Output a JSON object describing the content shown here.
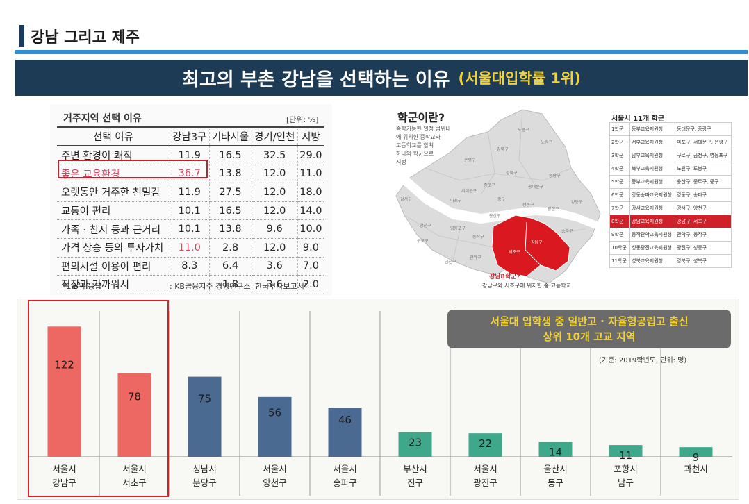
{
  "header": {
    "title": "강남 그리고 제주",
    "banner_main": "최고의 부촌 강남을 선택하는 이유",
    "banner_highlight": "(서울대입학률 1위)"
  },
  "reason_table": {
    "title": "거주지역 선택 이유",
    "unit": "[단위: %]",
    "headers": [
      "선택 이유",
      "강남3구",
      "기타서울",
      "경기/인천",
      "지방"
    ],
    "rows": [
      [
        "주변 환경이 쾌적",
        "11.9",
        "16.5",
        "32.5",
        "29.0"
      ],
      [
        "좋은 교육환경",
        "36.7",
        "13.8",
        "12.0",
        "11.0"
      ],
      [
        "오랫동안 거주한 친밀감",
        "11.9",
        "27.5",
        "12.0",
        "18.0"
      ],
      [
        "교통이 편리",
        "10.1",
        "16.5",
        "12.0",
        "14.0"
      ],
      [
        "가족 · 친지 등과 근거리",
        "10.1",
        "13.8",
        "9.6",
        "10.0"
      ],
      [
        "가격 상승 등의 투자가치",
        "11.0",
        "2.8",
        "12.0",
        "9.0"
      ],
      [
        "편의시설 이용이 편리",
        "8.3",
        "6.4",
        "3.6",
        "7.0"
      ],
      [
        "직장과 가까워서",
        "–",
        "1.8",
        "3.6",
        "2.0"
      ]
    ],
    "footnote": "*1순위 응답",
    "source": ": KB금융지주 경영연구소 '한국부자보고서'"
  },
  "map": {
    "title": "학군이란?",
    "desc": [
      "중학가능한 일정 범위내",
      "에 위치한 중학교와",
      "고등학교를 합쳐",
      "하나의 학군으로",
      "지정"
    ],
    "callout_title": "강남8학군?",
    "callout_text": "강남구와 서초구에 위치한 중·고등학교",
    "districts": [
      "도봉구",
      "노원구",
      "강북구",
      "은평구",
      "성북구",
      "종로구",
      "중랑구",
      "서대문구",
      "동대문구",
      "강서구",
      "마포구",
      "중구",
      "성동구",
      "광진구",
      "양천구",
      "용산구",
      "강동구",
      "구로구",
      "영등포구",
      "동작구",
      "송파구",
      "금천구",
      "관악구",
      "서초구",
      "강남구"
    ],
    "highlight_colors": {
      "gangnam": "#d9181f",
      "river": "#ffffff",
      "land": "#d9d9d9"
    }
  },
  "school_districts": {
    "title": "서울시 11개 학군",
    "rows": [
      [
        "1학군",
        "동부교육지원청",
        "동대문구, 중랑구"
      ],
      [
        "2학군",
        "서부교육지원청",
        "마포구, 서대문구, 은평구"
      ],
      [
        "3학군",
        "남부교육지원청",
        "구로구, 금천구, 영등포구"
      ],
      [
        "4학군",
        "북부교육지원청",
        "노원구, 도봉구"
      ],
      [
        "5학군",
        "중부교육지원청",
        "용산구, 종로구, 중구"
      ],
      [
        "6학군",
        "강동송파교육지원청",
        "강동구, 송파구"
      ],
      [
        "7학군",
        "강서교육지원청",
        "강서구, 양천구"
      ],
      [
        "8학군",
        "강남교육지원청",
        "강남구, 서초구"
      ],
      [
        "9학군",
        "동작관악교육지원청",
        "관악구, 동작구"
      ],
      [
        "10학군",
        "성동광진교육지원청",
        "광진구, 성동구"
      ],
      [
        "11학군",
        "성북교육지원청",
        "강북구, 성북구"
      ]
    ],
    "selected_index": 7
  },
  "chart_data": {
    "type": "bar",
    "title": "서울대 입학생 중 일반고 · 자율형공립고 출신 상위 10개 고교 지역",
    "title_line1": "서울대 입학생 중 일반고 · 자율형공립고 출신",
    "title_line2": "상위 10개 고교 지역",
    "note": "(기준: 2019학년도, 단위: 명)",
    "categories": [
      [
        "서울시",
        "강남구"
      ],
      [
        "서울시",
        "서초구"
      ],
      [
        "성남시",
        "분당구"
      ],
      [
        "서울시",
        "양천구"
      ],
      [
        "서울시",
        "송파구"
      ],
      [
        "부산시",
        "진구"
      ],
      [
        "서울시",
        "광진구"
      ],
      [
        "울산시",
        "동구"
      ],
      [
        "포항시",
        "남구"
      ],
      [
        "과천시",
        ""
      ]
    ],
    "values": [
      122,
      78,
      75,
      56,
      46,
      23,
      22,
      14,
      11,
      9
    ],
    "colors": [
      "#ee6863",
      "#ee6863",
      "#4a6a92",
      "#4a6a92",
      "#4a6a92",
      "#3fa88a",
      "#3fa88a",
      "#3fa88a",
      "#3fa88a",
      "#3fa88a"
    ],
    "ylim": [
      0,
      130
    ],
    "xlabel": "",
    "ylabel": "",
    "grid": false
  }
}
